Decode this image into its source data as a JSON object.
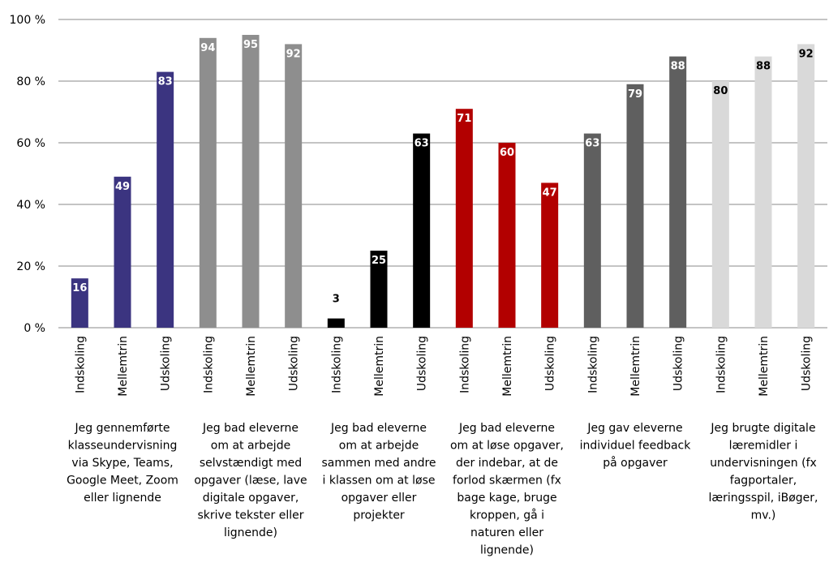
{
  "chart_data": {
    "type": "bar",
    "ylim": [
      0,
      100
    ],
    "y_ticks": [
      "0 %",
      "20 %",
      "40 %",
      "60 %",
      "80 %",
      "100 %"
    ],
    "grid": true,
    "legend": "none",
    "groups": [
      {
        "label": [
          "Jeg gennemførte",
          "klasseundervisning",
          "via Skype, Teams,",
          "Google Meet, Zoom",
          "eller lignende"
        ],
        "color": "#3b3480",
        "label_color": "#ffffff",
        "categories": [
          "Indskoling",
          "Mellemtrin",
          "Udskoling"
        ],
        "values": [
          16,
          49,
          83
        ]
      },
      {
        "label": [
          "Jeg bad eleverne",
          "om at arbejde",
          "selvstændigt med",
          "opgaver (læse, lave",
          "digitale opgaver,",
          "skrive tekster eller",
          "lignende)"
        ],
        "color": "#8e8e8e",
        "label_color": "#ffffff",
        "categories": [
          "Indskoling",
          "Mellemtrin",
          "Udskoling"
        ],
        "values": [
          94,
          95,
          92
        ]
      },
      {
        "label": [
          "Jeg bad eleverne",
          "om at arbejde",
          "sammen med andre",
          "i klassen om at løse",
          "opgaver eller",
          "projekter"
        ],
        "color": "#000000",
        "label_color": "#ffffff",
        "categories": [
          "Indskoling",
          "Mellemtrin",
          "Udskoling"
        ],
        "values": [
          3,
          25,
          63
        ]
      },
      {
        "label": [
          "Jeg bad eleverne",
          "om at løse opgaver,",
          "der indebar, at de",
          "forlod skærmen (fx",
          "bage kage, bruge",
          "kroppen, gå i",
          "naturen eller",
          "lignende)"
        ],
        "color": "#b20000",
        "label_color": "#ffffff",
        "categories": [
          "Indskoling",
          "Mellemtrin",
          "Udskoling"
        ],
        "values": [
          71,
          60,
          47
        ]
      },
      {
        "label": [
          "Jeg gav eleverne",
          "individuel feedback",
          "på opgaver"
        ],
        "color": "#5f5f5f",
        "label_color": "#ffffff",
        "categories": [
          "Indskoling",
          "Mellemtrin",
          "Udskoling"
        ],
        "values": [
          63,
          79,
          88
        ]
      },
      {
        "label": [
          "Jeg brugte digitale",
          "læremidler i",
          "undervisningen (fx",
          "fagportaler,",
          "læringsspil, iBøger,",
          "mv.)"
        ],
        "color": "#d9d9d9",
        "label_color": "#000000",
        "categories": [
          "Indskoling",
          "Mellemtrin",
          "Udskoling"
        ],
        "values": [
          80,
          88,
          92
        ]
      }
    ]
  }
}
